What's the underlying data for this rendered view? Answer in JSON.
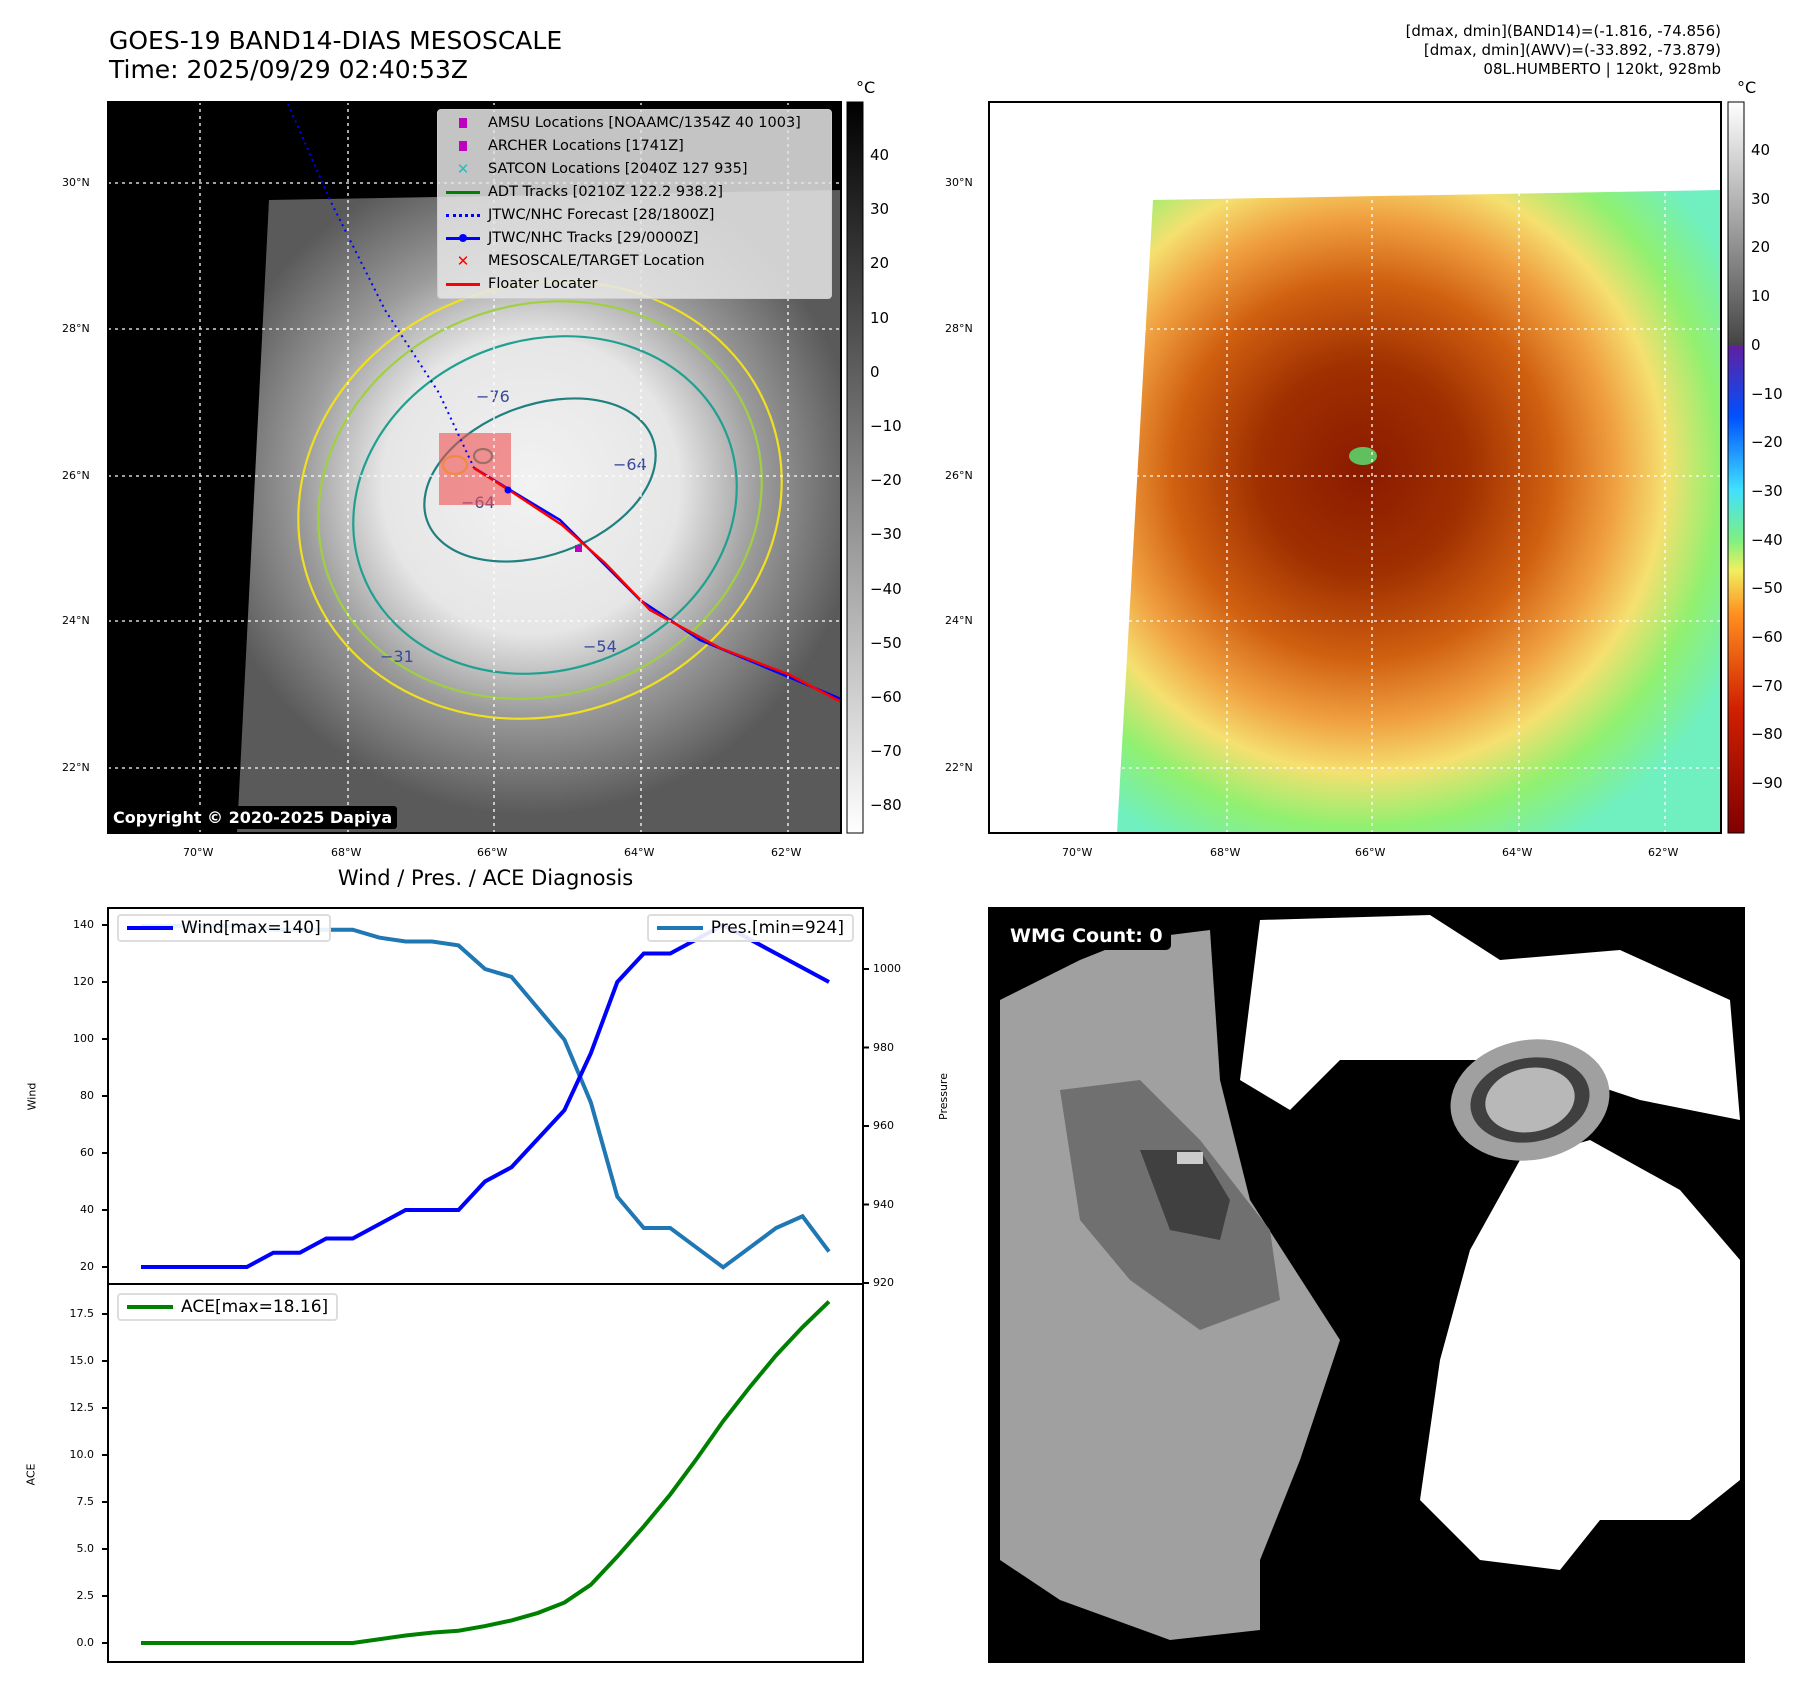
{
  "header": {
    "title_line1": "GOES-19 BAND14-DIAS MESOSCALE",
    "title_line2": "Time: 2025/09/29 02:40:53Z",
    "info_line1": "[dmax, dmin](BAND14)=(-1.816, -74.856)",
    "info_line2": "[dmax, dmin](AWV)=(-33.892, -73.879)",
    "info_line3": "08L.HUMBERTO | 120kt, 928mb"
  },
  "map_left": {
    "unit": "°C",
    "colorbar_ticks": [
      "40",
      "30",
      "20",
      "10",
      "0",
      "−10",
      "−20",
      "−30",
      "−40",
      "−50",
      "−60",
      "−70",
      "−80"
    ],
    "lat_labels": [
      "30°N",
      "28°N",
      "26°N",
      "24°N",
      "22°N"
    ],
    "lon_labels": [
      "70°W",
      "68°W",
      "66°W",
      "64°W",
      "62°W"
    ],
    "contour_labels": [
      "−76",
      "−64",
      "−64",
      "−54",
      "−31"
    ],
    "copyright": "Copyright © 2020-2025 Dapiya",
    "legend": [
      {
        "label": "AMSU Locations [NOAAMC/1354Z 40 1003]",
        "symbol": "square",
        "color": "#c000c0"
      },
      {
        "label": "ARCHER Locations [1741Z]",
        "symbol": "square",
        "color": "#c000c0"
      },
      {
        "label": "SATCON Locations [2040Z 127 935]",
        "symbol": "x",
        "color": "#20c0c0"
      },
      {
        "label": "ADT Tracks [0210Z 122.2 938.2]",
        "symbol": "line",
        "color": "#008000"
      },
      {
        "label": "JTWC/NHC Forecast [28/1800Z]",
        "symbol": "dotted",
        "color": "#0000ff"
      },
      {
        "label": "JTWC/NHC Tracks [29/0000Z]",
        "symbol": "line-dot",
        "color": "#0000ff"
      },
      {
        "label": "MESOSCALE/TARGET Location",
        "symbol": "x",
        "color": "#ff0000"
      },
      {
        "label": "Floater Locater",
        "symbol": "line",
        "color": "#ff0000"
      }
    ]
  },
  "map_right": {
    "unit": "°C",
    "colorbar_ticks": [
      "40",
      "30",
      "20",
      "10",
      "0",
      "−10",
      "−20",
      "−30",
      "−40",
      "−50",
      "−60",
      "−70",
      "−80",
      "−90"
    ],
    "lat_labels": [
      "30°N",
      "28°N",
      "26°N",
      "24°N",
      "22°N"
    ],
    "lon_labels": [
      "70°W",
      "68°W",
      "66°W",
      "64°W",
      "62°W"
    ]
  },
  "wmg_panel": {
    "label": "WMG Count: 0"
  },
  "chart_data": [
    {
      "type": "line",
      "title": "Wind / Pres. / ACE Diagnosis",
      "ylabel": "Wind",
      "ylabel_right": "Pressure",
      "ylim": [
        14,
        146
      ],
      "ylim_right": [
        920,
        1014
      ],
      "yticks": [
        20,
        40,
        60,
        80,
        100,
        120,
        140
      ],
      "yticks_right": [
        920,
        940,
        960,
        980,
        1000
      ],
      "series": [
        {
          "name": "Wind[max=140]",
          "axis": "left",
          "color": "#0000ff",
          "values": [
            20,
            20,
            20,
            20,
            20,
            25,
            25,
            30,
            30,
            35,
            40,
            40,
            40,
            50,
            55,
            65,
            75,
            95,
            120,
            130,
            130,
            135,
            140,
            135,
            130,
            125,
            120
          ]
        },
        {
          "name": "Pres.[min=924]",
          "axis": "right",
          "color": "#1f77b4",
          "values": [
            1011,
            1011,
            1011,
            1011,
            1011,
            1010,
            1010,
            1010,
            1010,
            1008,
            1007,
            1007,
            1006,
            1000,
            998,
            990,
            982,
            966,
            942,
            934,
            934,
            929,
            924,
            929,
            934,
            937,
            928
          ]
        }
      ]
    },
    {
      "type": "line",
      "ylabel": "ACE",
      "ylim": [
        -0.9,
        19.2
      ],
      "yticks": [
        0.0,
        2.5,
        5.0,
        7.5,
        10.0,
        12.5,
        15.0,
        17.5
      ],
      "series": [
        {
          "name": "ACE[max=18.16]",
          "color": "#008000",
          "values": [
            0,
            0,
            0,
            0,
            0,
            0,
            0,
            0,
            0,
            0.2,
            0.4,
            0.55,
            0.65,
            0.9,
            1.2,
            1.6,
            2.15,
            3.1,
            4.6,
            6.2,
            7.9,
            9.8,
            11.8,
            13.6,
            15.3,
            16.8,
            18.16
          ]
        }
      ]
    }
  ]
}
